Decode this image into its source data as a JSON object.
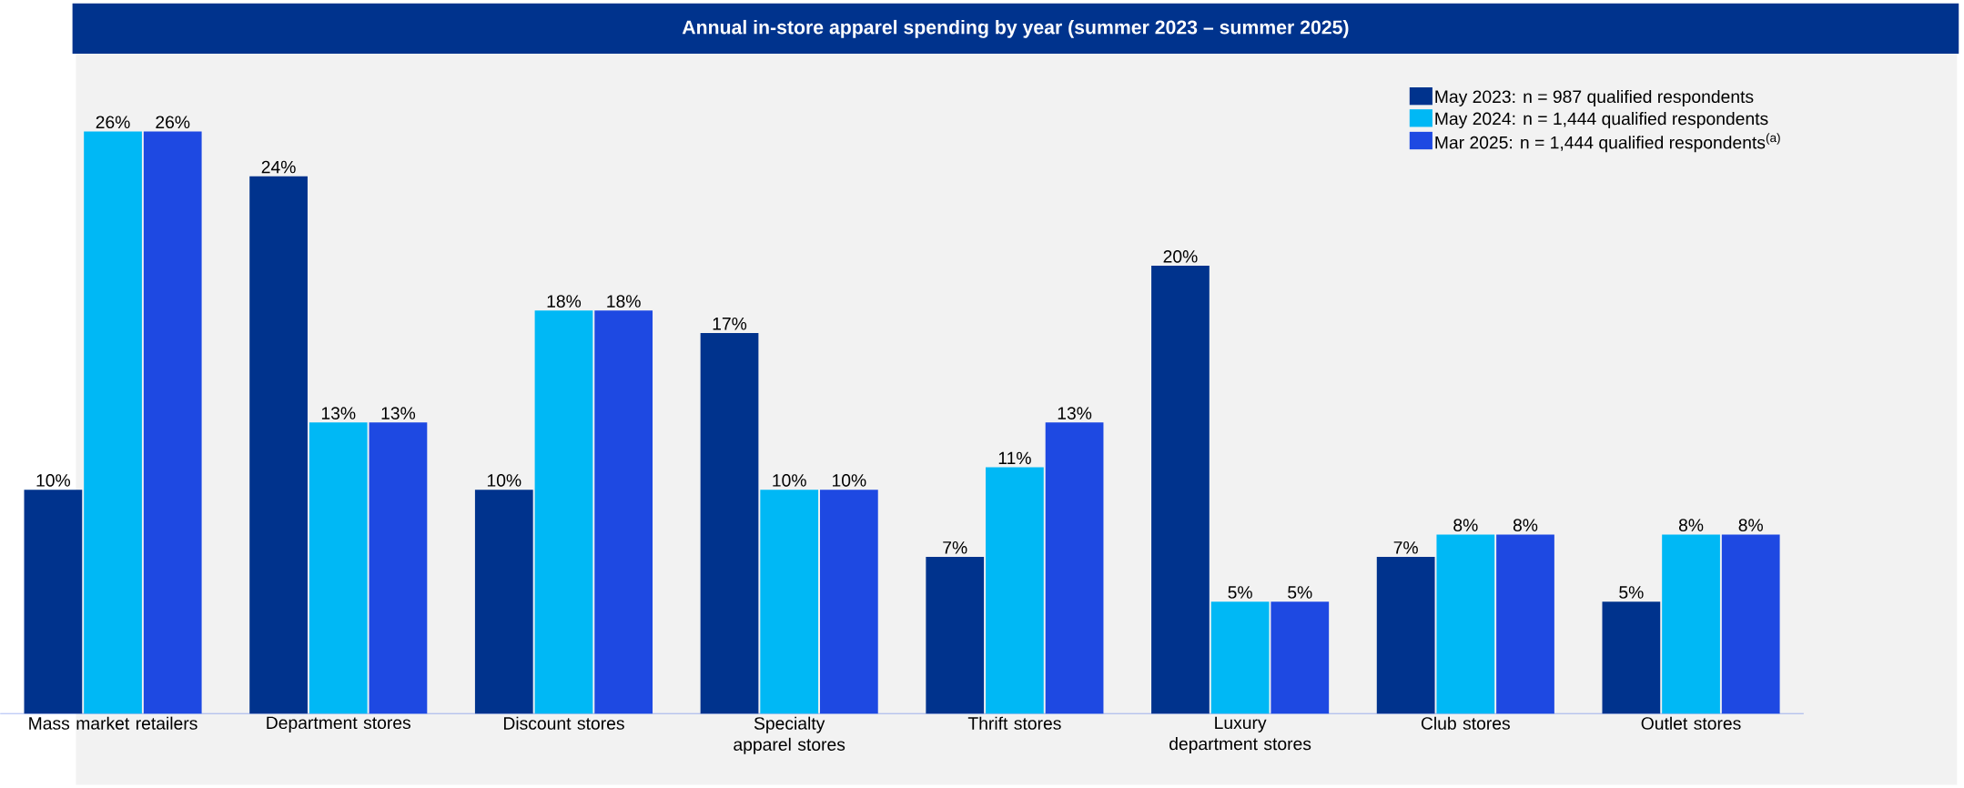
{
  "chart_data": {
    "type": "bar",
    "title": "Annual in-store apparel spending by year (summer 2023 – summer 2025)",
    "categories": [
      "Mass market retailers",
      "Department stores",
      "Discount stores",
      "Specialty apparel stores",
      "Thrift stores",
      "Luxury department stores",
      "Club stores",
      "Outlet stores"
    ],
    "series": [
      {
        "name": "May 2023: n = 987 qualified respondents",
        "color": "#00338d",
        "values": [
          10,
          24,
          10,
          17,
          7,
          20,
          7,
          5
        ],
        "value_labels": [
          "10%",
          "24%",
          "10%",
          "17%",
          "7%",
          "20%",
          "7%",
          "5%"
        ]
      },
      {
        "name": "May 2024: n = 1,444 qualified respondents",
        "color": "#00b8f5",
        "values": [
          26,
          13,
          18,
          10,
          11,
          5,
          8,
          8
        ],
        "value_labels": [
          "26%",
          "13%",
          "18%",
          "10%",
          "11%",
          "5%",
          "8%",
          "8%"
        ]
      },
      {
        "name": "Mar 2025: n = 1,444 qualified respondents$^{(a)}$",
        "color": "#1e49e2",
        "values": [
          26,
          13,
          18,
          10,
          13,
          5,
          8,
          8
        ],
        "value_labels": [
          "26%",
          "13%",
          "18%",
          "10%",
          "13%",
          "5%",
          "8%",
          "8%"
        ]
      }
    ],
    "legend": "top right"
  }
}
